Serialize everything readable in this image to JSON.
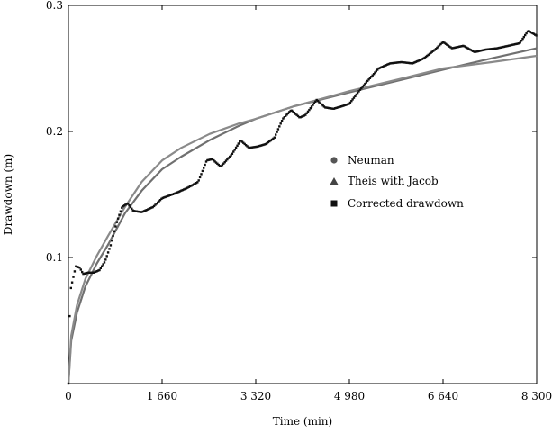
{
  "chart_data": {
    "type": "scatter",
    "title": "",
    "xlabel": "Time (min)",
    "ylabel": "Drawdown (m)",
    "xlim": [
      0,
      8300
    ],
    "ylim": [
      0,
      0.3
    ],
    "x_ticks": [
      {
        "value": 0,
        "label": "0"
      },
      {
        "value": 1660,
        "label": "1 660"
      },
      {
        "value": 3320,
        "label": "3 320"
      },
      {
        "value": 4980,
        "label": "4 980"
      },
      {
        "value": 6640,
        "label": "6 640"
      },
      {
        "value": 8300,
        "label": "8 300"
      }
    ],
    "y_ticks": [
      {
        "value": 0.1,
        "label": "0.1"
      },
      {
        "value": 0.2,
        "label": "0.2"
      },
      {
        "value": 0.3,
        "label": "0.3"
      }
    ],
    "legend": {
      "position": "center-right",
      "entries": [
        {
          "label": "Neuman",
          "marker": "circle"
        },
        {
          "label": "Theis with Jacob",
          "marker": "triangle"
        },
        {
          "label": "Corrected drawdown",
          "marker": "square"
        }
      ]
    },
    "series": [
      {
        "name": "Neuman",
        "style": "line",
        "color": "#707070",
        "points": [
          [
            0,
            0
          ],
          [
            50,
            0.034
          ],
          [
            150,
            0.056
          ],
          [
            300,
            0.077
          ],
          [
            500,
            0.095
          ],
          [
            700,
            0.11
          ],
          [
            1000,
            0.135
          ],
          [
            1300,
            0.153
          ],
          [
            1660,
            0.17
          ],
          [
            2000,
            0.18
          ],
          [
            2500,
            0.193
          ],
          [
            3000,
            0.204
          ],
          [
            3320,
            0.21
          ],
          [
            4000,
            0.22
          ],
          [
            4980,
            0.231
          ],
          [
            6000,
            0.242
          ],
          [
            6640,
            0.249
          ],
          [
            7500,
            0.258
          ],
          [
            8300,
            0.266
          ]
        ]
      },
      {
        "name": "Theis with Jacob",
        "style": "line",
        "color": "#8a8a8a",
        "points": [
          [
            0,
            0
          ],
          [
            50,
            0.038
          ],
          [
            150,
            0.062
          ],
          [
            300,
            0.083
          ],
          [
            500,
            0.101
          ],
          [
            700,
            0.117
          ],
          [
            1000,
            0.14
          ],
          [
            1300,
            0.16
          ],
          [
            1660,
            0.177
          ],
          [
            2000,
            0.187
          ],
          [
            2500,
            0.198
          ],
          [
            3000,
            0.206
          ],
          [
            3320,
            0.21
          ],
          [
            4000,
            0.22
          ],
          [
            4980,
            0.232
          ],
          [
            6000,
            0.243
          ],
          [
            6640,
            0.25
          ],
          [
            7500,
            0.255
          ],
          [
            8300,
            0.26
          ]
        ]
      },
      {
        "name": "Corrected drawdown",
        "style": "dots",
        "color": "#111111",
        "points": [
          [
            0,
            0
          ],
          [
            30,
            0.073
          ],
          [
            80,
            0.083
          ],
          [
            130,
            0.093
          ],
          [
            200,
            0.092
          ],
          [
            260,
            0.087
          ],
          [
            350,
            0.088
          ],
          [
            450,
            0.088
          ],
          [
            550,
            0.09
          ],
          [
            650,
            0.097
          ],
          [
            750,
            0.11
          ],
          [
            850,
            0.127
          ],
          [
            950,
            0.14
          ],
          [
            1050,
            0.143
          ],
          [
            1150,
            0.137
          ],
          [
            1300,
            0.136
          ],
          [
            1500,
            0.14
          ],
          [
            1660,
            0.147
          ],
          [
            1900,
            0.151
          ],
          [
            2100,
            0.155
          ],
          [
            2300,
            0.16
          ],
          [
            2450,
            0.177
          ],
          [
            2550,
            0.178
          ],
          [
            2700,
            0.172
          ],
          [
            2900,
            0.182
          ],
          [
            3050,
            0.193
          ],
          [
            3200,
            0.187
          ],
          [
            3350,
            0.188
          ],
          [
            3500,
            0.19
          ],
          [
            3650,
            0.195
          ],
          [
            3800,
            0.21
          ],
          [
            3950,
            0.217
          ],
          [
            4100,
            0.211
          ],
          [
            4200,
            0.213
          ],
          [
            4400,
            0.225
          ],
          [
            4550,
            0.219
          ],
          [
            4700,
            0.218
          ],
          [
            4850,
            0.22
          ],
          [
            4980,
            0.222
          ],
          [
            5150,
            0.232
          ],
          [
            5300,
            0.24
          ],
          [
            5500,
            0.25
          ],
          [
            5700,
            0.254
          ],
          [
            5900,
            0.255
          ],
          [
            6100,
            0.254
          ],
          [
            6300,
            0.258
          ],
          [
            6500,
            0.265
          ],
          [
            6640,
            0.271
          ],
          [
            6800,
            0.266
          ],
          [
            7000,
            0.268
          ],
          [
            7200,
            0.263
          ],
          [
            7400,
            0.265
          ],
          [
            7600,
            0.266
          ],
          [
            7800,
            0.268
          ],
          [
            8000,
            0.27
          ],
          [
            8150,
            0.28
          ],
          [
            8300,
            0.276
          ]
        ]
      }
    ]
  }
}
